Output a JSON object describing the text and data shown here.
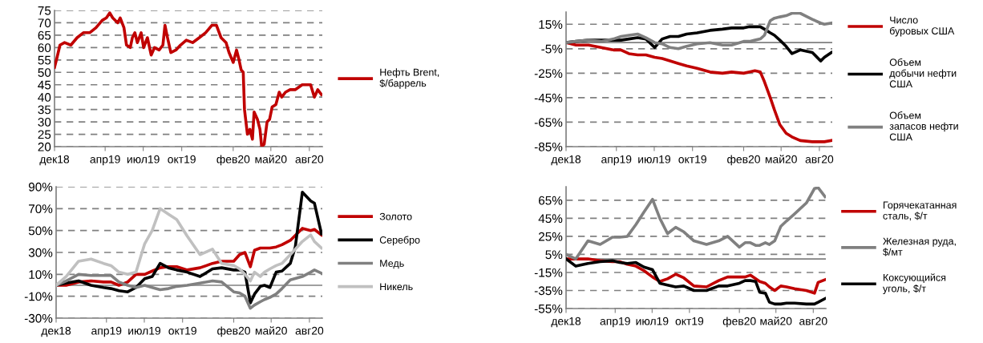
{
  "chart_data": [
    {
      "type": "line",
      "xlim": [
        "2018-12-01",
        "2020-09-01"
      ],
      "xticks": [
        {
          "value": "2018-12-01",
          "label": "дек18"
        },
        {
          "value": "2019-04-01",
          "label": "апр19"
        },
        {
          "value": "2019-07-01",
          "label": "июл19"
        },
        {
          "value": "2019-10-01",
          "label": "окт19"
        },
        {
          "value": "2020-02-01",
          "label": "фев20"
        },
        {
          "value": "2020-05-01",
          "label": "май20"
        },
        {
          "value": "2020-08-01",
          "label": "авг20"
        }
      ],
      "ylim": [
        20,
        75
      ],
      "yticks": [
        20,
        25,
        30,
        35,
        40,
        45,
        50,
        55,
        60,
        65,
        70,
        75
      ],
      "grid": "y",
      "legend": "right",
      "x": [
        "2018-12-01",
        "2018-12-07",
        "2018-12-14",
        "2018-12-25",
        "2019-01-09",
        "2019-01-24",
        "2019-02-08",
        "2019-02-23",
        "2019-03-10",
        "2019-03-25",
        "2019-04-04",
        "2019-04-12",
        "2019-04-19",
        "2019-05-01",
        "2019-05-07",
        "2019-05-16",
        "2019-05-22",
        "2019-05-31",
        "2019-06-05",
        "2019-06-11",
        "2019-06-17",
        "2019-06-26",
        "2019-07-02",
        "2019-07-11",
        "2019-07-20",
        "2019-07-28",
        "2019-08-08",
        "2019-08-17",
        "2019-08-22",
        "2019-08-28",
        "2019-09-05",
        "2019-09-17",
        "2019-09-28",
        "2019-10-12",
        "2019-10-27",
        "2019-11-12",
        "2019-11-27",
        "2019-12-12",
        "2019-12-23",
        "2020-01-03",
        "2020-01-15",
        "2020-01-22",
        "2020-02-01",
        "2020-02-09",
        "2020-02-15",
        "2020-02-20",
        "2020-02-25",
        "2020-02-28",
        "2020-03-06",
        "2020-03-12",
        "2020-03-18",
        "2020-03-22",
        "2020-03-30",
        "2020-04-05",
        "2020-04-09",
        "2020-04-15",
        "2020-04-22",
        "2020-04-28",
        "2020-05-04",
        "2020-05-13",
        "2020-05-21",
        "2020-05-27",
        "2020-06-05",
        "2020-06-16",
        "2020-06-28",
        "2020-07-15",
        "2020-08-04",
        "2020-08-13",
        "2020-08-21",
        "2020-08-30"
      ],
      "series": [
        {
          "name": "Нефть Brent,\n$/баррель",
          "color": "#c00000",
          "values": [
            52,
            56,
            61,
            62,
            61,
            64,
            66,
            66,
            68,
            71,
            72,
            74,
            72,
            70,
            72,
            68,
            61,
            60,
            64,
            66,
            62,
            66,
            60,
            64,
            57,
            60,
            59,
            61,
            69,
            64,
            58,
            59,
            61,
            63,
            62,
            64,
            66,
            69,
            69,
            64,
            62,
            58,
            54,
            59,
            55,
            51,
            50,
            35,
            25,
            27,
            23,
            34,
            31,
            27,
            20,
            21,
            30,
            31,
            36,
            37,
            42,
            40,
            42,
            43,
            43,
            45,
            45,
            40,
            43,
            41
          ]
        }
      ]
    },
    {
      "type": "line",
      "xlim": [
        "2018-12-01",
        "2020-09-01"
      ],
      "xticks": [
        {
          "value": "2018-12-01",
          "label": "дек18"
        },
        {
          "value": "2019-04-01",
          "label": "апр19"
        },
        {
          "value": "2019-07-01",
          "label": "июл19"
        },
        {
          "value": "2019-10-01",
          "label": "окт19"
        },
        {
          "value": "2020-02-01",
          "label": "фев20"
        },
        {
          "value": "2020-05-01",
          "label": "май20"
        },
        {
          "value": "2020-08-01",
          "label": "авг20"
        }
      ],
      "ylim": [
        -85,
        25
      ],
      "yticks": [
        {
          "value": -85,
          "label": "-85%"
        },
        {
          "value": -65,
          "label": "-65%"
        },
        {
          "value": -45,
          "label": "-45%"
        },
        {
          "value": -25,
          "label": "-25%"
        },
        {
          "value": -5,
          "label": "-5%"
        },
        {
          "value": 15,
          "label": "15%"
        }
      ],
      "grid": "y",
      "legend": "right",
      "ref_lines": [
        {
          "axis": "y",
          "value": 0,
          "color": "#808080"
        }
      ],
      "x": [
        "2018-12-01",
        "2018-12-25",
        "2019-01-24",
        "2019-02-23",
        "2019-03-25",
        "2019-04-12",
        "2019-05-01",
        "2019-05-22",
        "2019-06-11",
        "2019-07-02",
        "2019-07-20",
        "2019-08-08",
        "2019-08-28",
        "2019-09-17",
        "2019-10-12",
        "2019-11-12",
        "2019-12-12",
        "2020-01-03",
        "2020-02-01",
        "2020-02-15",
        "2020-02-28",
        "2020-03-12",
        "2020-03-22",
        "2020-04-05",
        "2020-04-15",
        "2020-04-28",
        "2020-05-13",
        "2020-05-27",
        "2020-06-16",
        "2020-07-15",
        "2020-08-04",
        "2020-08-13",
        "2020-08-30"
      ],
      "series": [
        {
          "name": "Число\nбуровых США",
          "color": "#c00000",
          "values": [
            0,
            -2,
            -2,
            -4,
            -6,
            -6,
            -9,
            -10,
            -10,
            -12,
            -13,
            -15,
            -17,
            -19,
            -21,
            -24,
            -25,
            -24,
            -25,
            -24,
            -23,
            -24,
            -32,
            -45,
            -55,
            -67,
            -74,
            -77,
            -80,
            -81,
            -81,
            -81,
            -80
          ]
        },
        {
          "name": "Объем\nдобычи нефти\nСША",
          "color": "#000000",
          "values": [
            0,
            1,
            2,
            2,
            2,
            2,
            3,
            4,
            3,
            -4,
            3,
            5,
            5,
            7,
            8,
            10,
            11,
            12,
            12,
            13,
            13,
            13,
            11,
            8,
            6,
            2,
            -3,
            -9,
            -6,
            -8,
            -15,
            -12,
            -8
          ]
        },
        {
          "name": "Объем\nзапасов нефти\nСША",
          "color": "#808080",
          "values": [
            0,
            1,
            2,
            1,
            3,
            5,
            6,
            7,
            4,
            0,
            -1,
            -4,
            -5,
            -3,
            -1,
            0,
            -2,
            -2,
            1,
            1,
            2,
            3,
            6,
            18,
            20,
            21,
            22,
            24,
            24,
            19,
            16,
            15,
            16
          ]
        }
      ]
    },
    {
      "type": "line",
      "xlim": [
        "2018-12-01",
        "2020-09-01"
      ],
      "xticks": [
        {
          "value": "2018-12-01",
          "label": "дек18"
        },
        {
          "value": "2019-04-01",
          "label": "апр19"
        },
        {
          "value": "2019-07-01",
          "label": "июл19"
        },
        {
          "value": "2019-10-01",
          "label": "окт19"
        },
        {
          "value": "2020-02-01",
          "label": "фев20"
        },
        {
          "value": "2020-05-01",
          "label": "май20"
        },
        {
          "value": "2020-08-01",
          "label": "авг20"
        }
      ],
      "ylim": [
        -30,
        90
      ],
      "yticks": [
        {
          "value": -30,
          "label": "-30%"
        },
        {
          "value": -10,
          "label": "-10%"
        },
        {
          "value": 10,
          "label": "10%"
        },
        {
          "value": 30,
          "label": "30%"
        },
        {
          "value": 50,
          "label": "50%"
        },
        {
          "value": 70,
          "label": "70%"
        },
        {
          "value": 90,
          "label": "90%"
        }
      ],
      "grid": "y",
      "legend": "right",
      "ref_lines": [
        {
          "axis": "y",
          "value": 0,
          "color": "#808080"
        }
      ],
      "x": [
        "2018-12-01",
        "2018-12-25",
        "2019-01-24",
        "2019-02-23",
        "2019-03-25",
        "2019-04-12",
        "2019-05-01",
        "2019-05-22",
        "2019-06-11",
        "2019-07-02",
        "2019-07-20",
        "2019-08-08",
        "2019-08-28",
        "2019-09-17",
        "2019-10-12",
        "2019-11-12",
        "2019-12-12",
        "2020-01-03",
        "2020-02-01",
        "2020-02-15",
        "2020-02-28",
        "2020-03-12",
        "2020-03-22",
        "2020-04-05",
        "2020-04-15",
        "2020-04-28",
        "2020-05-13",
        "2020-05-27",
        "2020-06-16",
        "2020-07-15",
        "2020-08-04",
        "2020-08-13",
        "2020-08-30"
      ],
      "series": [
        {
          "name": "Золото",
          "color": "#c00000",
          "values": [
            0,
            0,
            3,
            4,
            3,
            3,
            0,
            3,
            10,
            10,
            13,
            16,
            17,
            17,
            14,
            16,
            20,
            22,
            22,
            28,
            30,
            17,
            32,
            34,
            34,
            34,
            35,
            37,
            41,
            52,
            50,
            51,
            46
          ]
        },
        {
          "name": "Серебро",
          "color": "#000000",
          "x": [
            "2018-12-01",
            "2018-12-25",
            "2019-01-24",
            "2019-02-23",
            "2019-03-25",
            "2019-04-12",
            "2019-05-01",
            "2019-05-22",
            "2019-06-11",
            "2019-07-02",
            "2019-07-20",
            "2019-08-08",
            "2019-08-28",
            "2019-09-17",
            "2019-10-12",
            "2019-11-12",
            "2019-12-12",
            "2020-01-03",
            "2020-02-01",
            "2020-02-15",
            "2020-02-28",
            "2020-03-12",
            "2020-03-22",
            "2020-04-05",
            "2020-04-15",
            "2020-04-28",
            "2020-05-13",
            "2020-05-27",
            "2020-06-16",
            "2020-06-28",
            "2020-07-15",
            "2020-08-04",
            "2020-08-13",
            "2020-08-30"
          ],
          "values": [
            0,
            2,
            4,
            0,
            -2,
            -3,
            -5,
            -6,
            -2,
            6,
            8,
            20,
            16,
            14,
            12,
            8,
            15,
            16,
            14,
            14,
            12,
            -16,
            -8,
            -1,
            0,
            -2,
            12,
            13,
            20,
            35,
            85,
            77,
            75,
            47
          ]
        },
        {
          "name": "Медь",
          "color": "#808080",
          "values": [
            0,
            4,
            10,
            9,
            9,
            9,
            3,
            0,
            -2,
            0,
            -2,
            -4,
            -3,
            -1,
            0,
            2,
            4,
            3,
            -6,
            -7,
            -10,
            -21,
            -18,
            -15,
            -13,
            -11,
            -8,
            -3,
            5,
            8,
            12,
            14,
            11
          ]
        },
        {
          "name": "Никель",
          "color": "#c0c0c0",
          "values": [
            0,
            8,
            22,
            24,
            20,
            18,
            12,
            10,
            12,
            38,
            50,
            70,
            65,
            60,
            45,
            28,
            33,
            20,
            18,
            15,
            10,
            4,
            12,
            8,
            12,
            15,
            18,
            20,
            28,
            40,
            46,
            40,
            34
          ]
        }
      ]
    },
    {
      "type": "line",
      "xlim": [
        "2018-12-01",
        "2020-09-01"
      ],
      "xticks": [
        {
          "value": "2018-12-01",
          "label": "дек18"
        },
        {
          "value": "2019-04-01",
          "label": "апр19"
        },
        {
          "value": "2019-07-01",
          "label": "июл19"
        },
        {
          "value": "2019-10-01",
          "label": "окт19"
        },
        {
          "value": "2020-02-01",
          "label": "фев20"
        },
        {
          "value": "2020-05-01",
          "label": "май20"
        },
        {
          "value": "2020-08-01",
          "label": "авг20"
        }
      ],
      "ylim": [
        -55,
        80
      ],
      "yticks": [
        {
          "value": -55,
          "label": "-55%"
        },
        {
          "value": -35,
          "label": "-35%"
        },
        {
          "value": -15,
          "label": "-15%"
        },
        {
          "value": 5,
          "label": "5%"
        },
        {
          "value": 25,
          "label": "25%"
        },
        {
          "value": 45,
          "label": "45%"
        },
        {
          "value": 65,
          "label": "65%"
        }
      ],
      "grid": "y",
      "legend": "right",
      "ref_lines": [
        {
          "axis": "y",
          "value": 0,
          "color": "#808080"
        }
      ],
      "x": [
        "2018-12-01",
        "2018-12-25",
        "2019-01-24",
        "2019-02-23",
        "2019-03-25",
        "2019-04-12",
        "2019-05-01",
        "2019-05-22",
        "2019-06-11",
        "2019-07-02",
        "2019-07-20",
        "2019-08-08",
        "2019-08-28",
        "2019-09-17",
        "2019-10-12",
        "2019-11-12",
        "2019-12-12",
        "2020-01-03",
        "2020-02-01",
        "2020-02-15",
        "2020-02-28",
        "2020-03-12",
        "2020-03-22",
        "2020-04-05",
        "2020-04-15",
        "2020-04-28",
        "2020-05-13",
        "2020-05-27",
        "2020-06-16",
        "2020-07-15",
        "2020-08-04",
        "2020-08-13",
        "2020-08-30"
      ],
      "series": [
        {
          "name": "Горячекатанная\nсталь, $/т",
          "color": "#c00000",
          "values": [
            0,
            0,
            0,
            -2,
            -3,
            -3,
            -6,
            -8,
            -13,
            -20,
            -25,
            -22,
            -17,
            -21,
            -30,
            -31,
            -24,
            -20,
            -20,
            -20,
            -18,
            -22,
            -25,
            -27,
            -31,
            -35,
            -30,
            -31,
            -33,
            -35,
            -38,
            -26,
            -23
          ]
        },
        {
          "name": "Железная руда,\n$/мт",
          "color": "#808080",
          "values": [
            5,
            0,
            20,
            16,
            24,
            24,
            25,
            38,
            52,
            66,
            45,
            28,
            35,
            30,
            20,
            16,
            20,
            25,
            13,
            18,
            18,
            15,
            15,
            18,
            16,
            20,
            36,
            42,
            50,
            62,
            78,
            79,
            69
          ]
        },
        {
          "name": "Коксующийся\nуголь, $/т",
          "color": "#000000",
          "values": [
            0,
            -8,
            -5,
            -3,
            -2,
            -4,
            -5,
            -4,
            -9,
            -12,
            -27,
            -29,
            -31,
            -30,
            -35,
            -35,
            -30,
            -30,
            -27,
            -24,
            -24,
            -25,
            -37,
            -38,
            -48,
            -50,
            -50,
            -49,
            -49,
            -50,
            -50,
            -48,
            -44
          ]
        }
      ]
    }
  ]
}
